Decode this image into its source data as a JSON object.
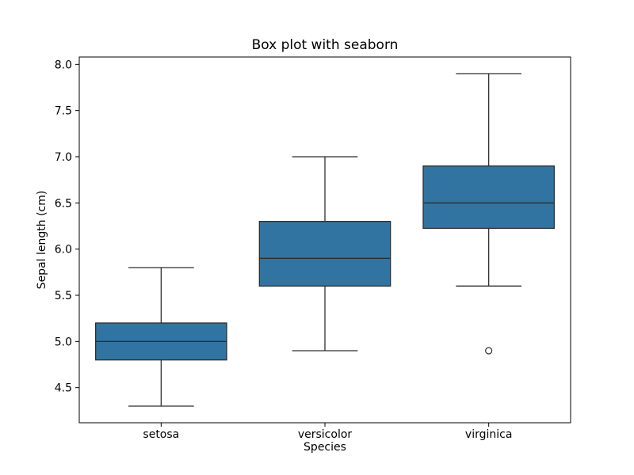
{
  "chart_data": {
    "type": "box",
    "title": "Box plot with seaborn",
    "xlabel": "Species",
    "ylabel": "Sepal length (cm)",
    "categories": [
      "setosa",
      "versicolor",
      "virginica"
    ],
    "yticks": [
      4.5,
      5.0,
      5.5,
      6.0,
      6.5,
      7.0,
      7.5,
      8.0
    ],
    "ylim": [
      4.12,
      8.08
    ],
    "legend": "none",
    "grid": false,
    "box_fill_color": "#3274a1",
    "line_color": "#2e2e2e",
    "axis_color": "#000000",
    "series": [
      {
        "name": "setosa",
        "whisker_low": 4.3,
        "q1": 4.8,
        "median": 5.0,
        "q3": 5.2,
        "whisker_high": 5.8,
        "outliers": []
      },
      {
        "name": "versicolor",
        "whisker_low": 4.9,
        "q1": 5.6,
        "median": 5.9,
        "q3": 6.3,
        "whisker_high": 7.0,
        "outliers": []
      },
      {
        "name": "virginica",
        "whisker_low": 5.6,
        "q1": 6.225,
        "median": 6.5,
        "q3": 6.9,
        "whisker_high": 7.9,
        "outliers": [
          4.9
        ]
      }
    ]
  }
}
